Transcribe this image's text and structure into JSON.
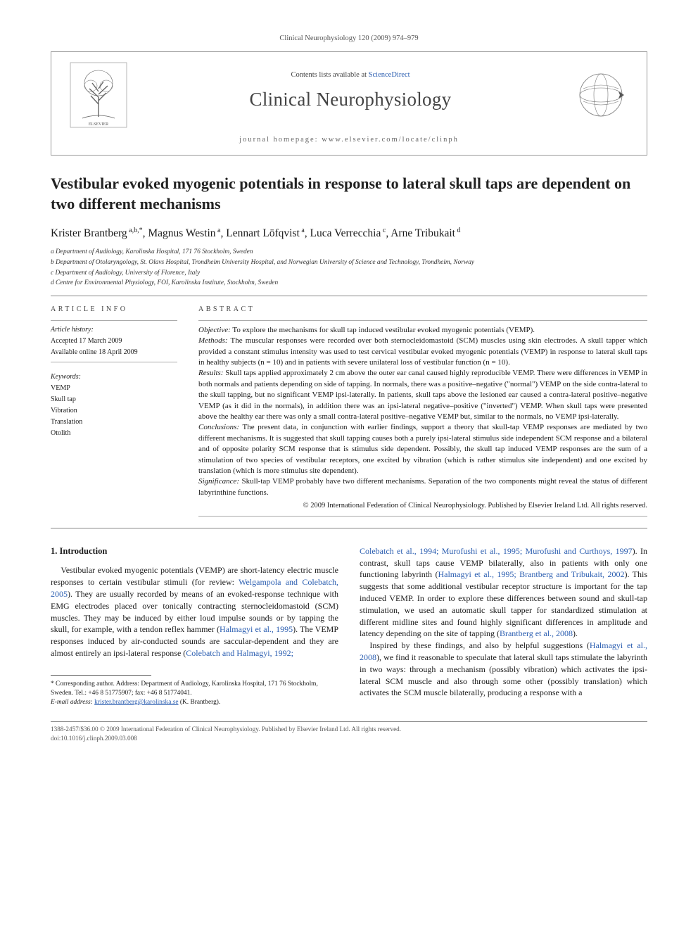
{
  "running_head": "Clinical Neurophysiology 120 (2009) 974–979",
  "header": {
    "contents_prefix": "Contents lists available at ",
    "contents_link": "ScienceDirect",
    "journal_title": "Clinical Neurophysiology",
    "homepage_label": "journal homepage: www.elsevier.com/locate/clinph"
  },
  "title": "Vestibular evoked myogenic potentials in response to lateral skull taps are dependent on two different mechanisms",
  "authors_html": "Krister Brantberg<sup> a,b,*</sup>, Magnus Westin<sup> a</sup>, Lennart Löfqvist<sup> a</sup>, Luca Verrecchia<sup> c</sup>, Arne Tribukait<sup> d</sup>",
  "affiliations": [
    "a Department of Audiology, Karolinska Hospital, 171 76 Stockholm, Sweden",
    "b Department of Otolaryngology, St. Olavs Hospital, Trondheim University Hospital, and Norwegian University of Science and Technology, Trondheim, Norway",
    "c Department of Audiology, University of Florence, Italy",
    "d Centre for Environmental Physiology, FOI, Karolinska Institute, Stockholm, Sweden"
  ],
  "article_info": {
    "heading": "ARTICLE INFO",
    "history_label": "Article history:",
    "accepted": "Accepted 17 March 2009",
    "online": "Available online 18 April 2009",
    "keywords_label": "Keywords:",
    "keywords": [
      "VEMP",
      "Skull tap",
      "Vibration",
      "Translation",
      "Otolith"
    ]
  },
  "abstract": {
    "heading": "ABSTRACT",
    "sections": [
      {
        "label": "Objective:",
        "text": " To explore the mechanisms for skull tap induced vestibular evoked myogenic potentials (VEMP)."
      },
      {
        "label": "Methods:",
        "text": " The muscular responses were recorded over both sternocleidomastoid (SCM) muscles using skin electrodes. A skull tapper which provided a constant stimulus intensity was used to test cervical vestibular evoked myogenic potentials (VEMP) in response to lateral skull taps in healthy subjects (n = 10) and in patients with severe unilateral loss of vestibular function (n = 10)."
      },
      {
        "label": "Results:",
        "text": " Skull taps applied approximately 2 cm above the outer ear canal caused highly reproducible VEMP. There were differences in VEMP in both normals and patients depending on side of tapping. In normals, there was a positive–negative (\"normal\") VEMP on the side contra-lateral to the skull tapping, but no significant VEMP ipsi-laterally. In patients, skull taps above the lesioned ear caused a contra-lateral positive–negative VEMP (as it did in the normals), in addition there was an ipsi-lateral negative–positive (\"inverted\") VEMP. When skull taps were presented above the healthy ear there was only a small contra-lateral positive–negative VEMP but, similar to the normals, no VEMP ipsi-laterally."
      },
      {
        "label": "Conclusions:",
        "text": " The present data, in conjunction with earlier findings, support a theory that skull-tap VEMP responses are mediated by two different mechanisms. It is suggested that skull tapping causes both a purely ipsi-lateral stimulus side independent SCM response and a bilateral and of opposite polarity SCM response that is stimulus side dependent. Possibly, the skull tap induced VEMP responses are the sum of a stimulation of two species of vestibular receptors, one excited by vibration (which is rather stimulus site independent) and one excited by translation (which is more stimulus site dependent)."
      },
      {
        "label": "Significance:",
        "text": " Skull-tap VEMP probably have two different mechanisms. Separation of the two components might reveal the status of different labyrinthine functions."
      }
    ],
    "copyright": "© 2009 International Federation of Clinical Neurophysiology. Published by Elsevier Ireland Ltd. All rights reserved."
  },
  "body": {
    "section_title": "1. Introduction",
    "left_paras": [
      "Vestibular evoked myogenic potentials (VEMP) are short-latency electric muscle responses to certain vestibular stimuli (for review: <span class=\"cite\">Welgampola and Colebatch, 2005</span>). They are usually recorded by means of an evoked-response technique with EMG electrodes placed over tonically contracting sternocleidomastoid (SCM) muscles. They may be induced by either loud impulse sounds or by tapping the skull, for example, with a tendon reflex hammer (<span class=\"cite\">Halmagyi et al., 1995</span>). The VEMP responses induced by air-conducted sounds are saccular-dependent and they are almost entirely an ipsi-lateral response (<span class=\"cite\">Colebatch and Halmagyi, 1992;</span>"
    ],
    "right_paras": [
      "<span class=\"cite\">Colebatch et al., 1994; Murofushi et al., 1995; Murofushi and Curthoys, 1997</span>). In contrast, skull taps cause VEMP bilaterally, also in patients with only one functioning labyrinth (<span class=\"cite\">Halmagyi et al., 1995; Brantberg and Tribukait, 2002</span>). This suggests that some additional vestibular receptor structure is important for the tap induced VEMP. In order to explore these differences between sound and skull-tap stimulation, we used an automatic skull tapper for standardized stimulation at different midline sites and found highly significant differences in amplitude and latency depending on the site of tapping (<span class=\"cite\">Brantberg et al., 2008</span>).",
      "Inspired by these findings, and also by helpful suggestions (<span class=\"cite\">Halmagyi et al., 2008</span>), we find it reasonable to speculate that lateral skull taps stimulate the labyrinth in two ways: through a mechanism (possibly vibration) which activates the ipsi-lateral SCM muscle and also through some other (possibly translation) which activates the SCM muscle bilaterally, producing a response with a"
    ]
  },
  "footnote": {
    "corr": "* Corresponding author. Address: Department of Audiology, Karolinska Hospital, 171 76 Stockholm, Sweden. Tel.: +46 8 51775907; fax: +46 8 51774041.",
    "email_label": "E-mail address:",
    "email": "krister.brantberg@karolinska.se",
    "email_tail": " (K. Brantberg)."
  },
  "footer": {
    "line1": "1388-2457/$36.00 © 2009 International Federation of Clinical Neurophysiology. Published by Elsevier Ireland Ltd. All rights reserved.",
    "line2": "doi:10.1016/j.clinph.2009.03.008"
  },
  "colors": {
    "link": "#2a5db0",
    "rule": "#888888",
    "text": "#1a1a1a"
  }
}
